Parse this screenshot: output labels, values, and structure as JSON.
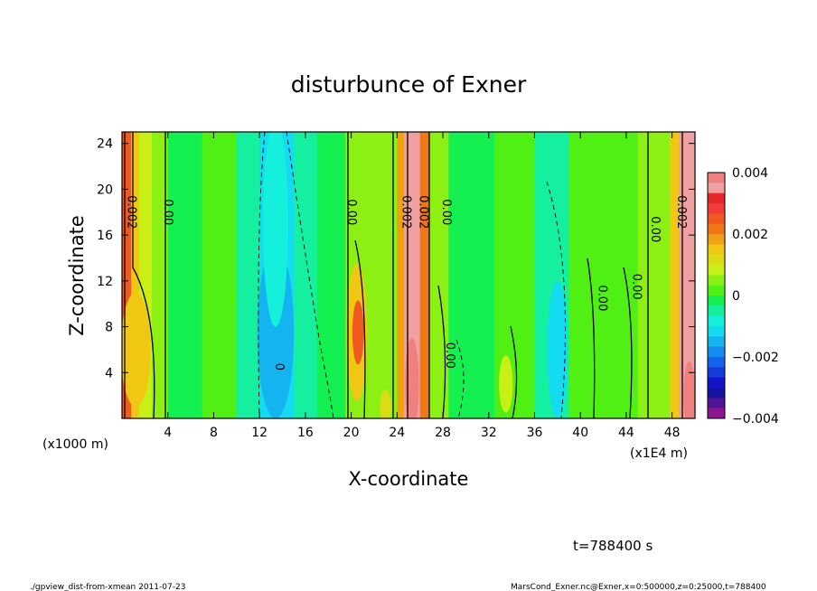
{
  "chart_data": {
    "type": "heatmap",
    "title": "disturbunce of Exner",
    "xlabel": "X-coordinate",
    "ylabel": "Z-coordinate",
    "x_unit_left": "(x1000 m)",
    "x_unit_right": "(x1E4 m)",
    "xlim": [
      0,
      50
    ],
    "ylim": [
      0,
      25
    ],
    "x_ticks": [
      "4",
      "8",
      "12",
      "16",
      "20",
      "24",
      "28",
      "32",
      "36",
      "40",
      "44",
      "48"
    ],
    "x_tick_values": [
      4,
      8,
      12,
      16,
      20,
      24,
      28,
      32,
      36,
      40,
      44,
      48
    ],
    "y_ticks": [
      "4",
      "8",
      "12",
      "16",
      "20",
      "24"
    ],
    "y_tick_values": [
      4,
      8,
      12,
      16,
      20,
      24
    ],
    "contour_labels": [
      {
        "text": "0.002",
        "x": 0.5,
        "z": 18
      },
      {
        "text": "0.00",
        "x": 3.7,
        "z": 18
      },
      {
        "text": "0.00",
        "x": 19.7,
        "z": 18
      },
      {
        "text": "0.002",
        "x": 24.5,
        "z": 18
      },
      {
        "text": "0.002",
        "x": 26.0,
        "z": 18
      },
      {
        "text": "0.00",
        "x": 28.0,
        "z": 18
      },
      {
        "text": "0.00",
        "x": 28.3,
        "z": 5.5
      },
      {
        "text": "0.00",
        "x": 41.6,
        "z": 10.5
      },
      {
        "text": "0.00",
        "x": 44.6,
        "z": 11.5
      },
      {
        "text": "0.00",
        "x": 46.2,
        "z": 16.5
      },
      {
        "text": "0.002",
        "x": 48.5,
        "z": 18
      },
      {
        "text": "0",
        "x": 13.4,
        "z": 4.5
      }
    ],
    "colorbar": {
      "range": [
        -0.004,
        0.004
      ],
      "tick_labels": [
        "0.004",
        "0.002",
        "0",
        "−0.002",
        "−0.004"
      ],
      "tick_values": [
        0.004,
        0.002,
        0,
        -0.002,
        -0.004
      ],
      "levels": [
        "#f08080",
        "#f0a0a0",
        "#e62828",
        "#f03c3c",
        "#f05a1e",
        "#f07814",
        "#f0a014",
        "#f0c814",
        "#dcdc14",
        "#c8f014",
        "#8cf014",
        "#50f014",
        "#14f050",
        "#14f0a0",
        "#14f0dc",
        "#14dcf0",
        "#14b4f0",
        "#148cf0",
        "#1464f0",
        "#143cdc",
        "#1414c8",
        "#1414a0",
        "#501496",
        "#8c148c"
      ]
    },
    "columns": [
      {
        "x0": 0,
        "x1": 0.8,
        "v": 0.0026
      },
      {
        "x0": 0.8,
        "x1": 1.5,
        "v": 0.0014
      },
      {
        "x0": 1.5,
        "x1": 2.6,
        "v": 0.0009
      },
      {
        "x0": 2.6,
        "x1": 4.0,
        "v": 0.0004
      },
      {
        "x0": 4.0,
        "x1": 7.0,
        "v": -0.0002
      },
      {
        "x0": 7.0,
        "x1": 10.0,
        "v": 0.0001
      },
      {
        "x0": 10.0,
        "x1": 12.0,
        "v": -0.0006
      },
      {
        "x0": 12.0,
        "x1": 15.0,
        "v": -0.001
      },
      {
        "x0": 15.0,
        "x1": 17.0,
        "v": -0.0006
      },
      {
        "x0": 17.0,
        "x1": 19.5,
        "v": -0.0001
      },
      {
        "x0": 19.5,
        "x1": 21.5,
        "v": 0.0006
      },
      {
        "x0": 21.5,
        "x1": 24.0,
        "v": 0.0004
      },
      {
        "x0": 24.0,
        "x1": 24.6,
        "v": 0.002
      },
      {
        "x0": 24.6,
        "x1": 26.0,
        "v": 0.0034
      },
      {
        "x0": 26.0,
        "x1": 26.8,
        "v": 0.0021
      },
      {
        "x0": 26.8,
        "x1": 28.5,
        "v": 0.0004
      },
      {
        "x0": 28.5,
        "x1": 31.0,
        "v": -0.0001
      },
      {
        "x0": 31.0,
        "x1": 32.5,
        "v": -0.0003
      },
      {
        "x0": 32.5,
        "x1": 36.0,
        "v": 0.0001
      },
      {
        "x0": 36.0,
        "x1": 39.0,
        "v": -0.0006
      },
      {
        "x0": 39.0,
        "x1": 45.0,
        "v": 0.0001
      },
      {
        "x0": 45.0,
        "x1": 47.8,
        "v": 0.0005
      },
      {
        "x0": 47.8,
        "x1": 48.6,
        "v": 0.0016
      },
      {
        "x0": 48.6,
        "x1": 50.0,
        "v": 0.0034
      }
    ],
    "blobs": [
      {
        "x": 13.4,
        "z": 7.5,
        "rx": 1.6,
        "rz": 7.5,
        "v": -0.0015
      },
      {
        "x": 13.4,
        "z": 17,
        "rx": 1.1,
        "rz": 9,
        "v": -0.0007
      },
      {
        "x": 20.5,
        "z": 7.5,
        "rx": 0.9,
        "rz": 6,
        "v": 0.0016
      },
      {
        "x": 20.6,
        "z": 7.5,
        "rx": 0.5,
        "rz": 2.8,
        "v": 0.0025
      },
      {
        "x": 25.3,
        "z": 3,
        "rx": 0.6,
        "rz": 4,
        "v": 0.0044
      },
      {
        "x": 1.2,
        "z": 6,
        "rx": 1.3,
        "rz": 5,
        "v": 0.0016
      },
      {
        "x": 49.5,
        "z": 2,
        "rx": 0.5,
        "rz": 3,
        "v": 0.0044
      },
      {
        "x": 38.0,
        "z": 6,
        "rx": 0.9,
        "rz": 6,
        "v": -0.001
      },
      {
        "x": 33.5,
        "z": 3,
        "rx": 0.6,
        "rz": 2.5,
        "v": 0.0007
      },
      {
        "x": 23.0,
        "z": 1,
        "rx": 0.5,
        "rz": 1.5,
        "v": 0.0012
      }
    ]
  },
  "time_label": "t=788400 s",
  "footer_left": "./gpview_dist-from-xmean  2011-07-23",
  "footer_right": "MarsCond_Exner.nc@Exner,x=0:500000,z=0:25000,t=788400"
}
